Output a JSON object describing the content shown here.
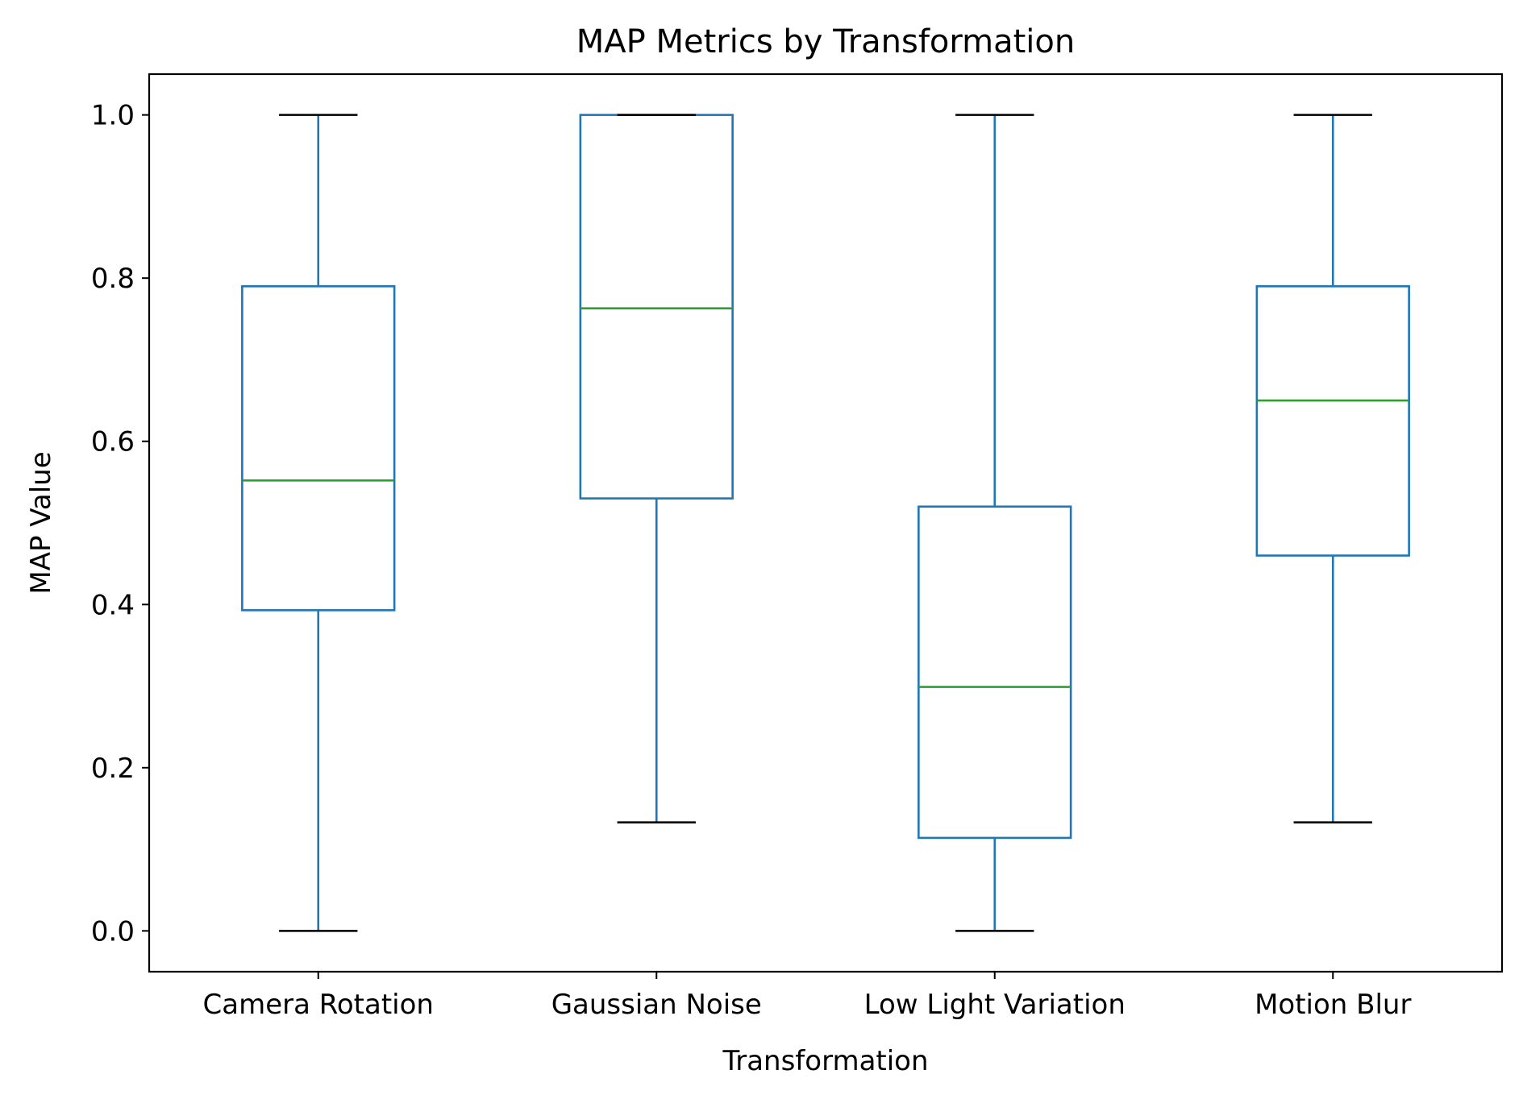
{
  "chart_data": {
    "type": "box",
    "title": "MAP Metrics by Transformation",
    "xlabel": "Transformation",
    "ylabel": "MAP Value",
    "ylim": [
      -0.05,
      1.05
    ],
    "yticks": [
      "0.0",
      "0.2",
      "0.4",
      "0.6",
      "0.8",
      "1.0"
    ],
    "ytick_values": [
      0.0,
      0.2,
      0.4,
      0.6,
      0.8,
      1.0
    ],
    "categories": [
      "Camera Rotation",
      "Gaussian Noise",
      "Low Light Variation",
      "Motion Blur"
    ],
    "boxes": [
      {
        "category": "Camera Rotation",
        "whisker_low": 0.0,
        "q1": 0.393,
        "median": 0.552,
        "q3": 0.79,
        "whisker_high": 1.0
      },
      {
        "category": "Gaussian Noise",
        "whisker_low": 0.133,
        "q1": 0.53,
        "median": 0.763,
        "q3": 1.0,
        "whisker_high": 1.0
      },
      {
        "category": "Low Light Variation",
        "whisker_low": 0.0,
        "q1": 0.114,
        "median": 0.299,
        "q3": 0.52,
        "whisker_high": 1.0
      },
      {
        "category": "Motion Blur",
        "whisker_low": 0.133,
        "q1": 0.46,
        "median": 0.65,
        "q3": 0.79,
        "whisker_high": 1.0
      }
    ],
    "grid": false,
    "colors": {
      "box": "#1f77b4",
      "median": "#2ca02c",
      "caps": "#000000",
      "axes": "#000000"
    }
  }
}
